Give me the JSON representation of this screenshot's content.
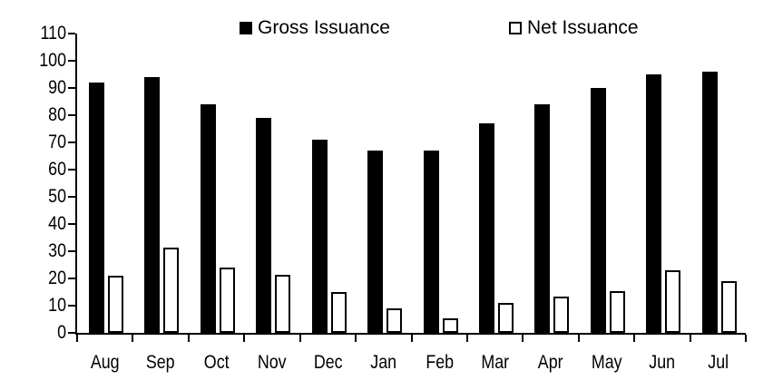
{
  "colors": {
    "background": "#ffffff",
    "text": "#000000",
    "axis": "#000000",
    "gross_fill": "#000000",
    "net_fill": "#ffffff",
    "net_stroke": "#000000"
  },
  "legend": {
    "gross_label": "Gross Issuance",
    "net_label": "Net Issuance"
  },
  "chart_data": {
    "type": "bar",
    "title": "",
    "xlabel": "",
    "ylabel": "",
    "categories": [
      "Aug",
      "Sep",
      "Oct",
      "Nov",
      "Dec",
      "Jan",
      "Feb",
      "Mar",
      "Apr",
      "May",
      "Jun",
      "Jul"
    ],
    "series": [
      {
        "name": "Gross Issuance",
        "fill": "#000000",
        "stroke": "#000000",
        "values": [
          92,
          94,
          84,
          79,
          71,
          67,
          67,
          77,
          84,
          90,
          95,
          96
        ]
      },
      {
        "name": "Net Issuance",
        "fill": "#ffffff",
        "stroke": "#000000",
        "values": [
          21,
          31.5,
          24,
          21.5,
          15,
          9,
          5.5,
          11,
          13.5,
          15.5,
          23,
          19
        ]
      }
    ],
    "ylim": [
      0,
      110
    ],
    "y_ticks": [
      0,
      10,
      20,
      30,
      40,
      50,
      60,
      70,
      80,
      90,
      100,
      110
    ],
    "grid": false,
    "legend_position": "top"
  }
}
